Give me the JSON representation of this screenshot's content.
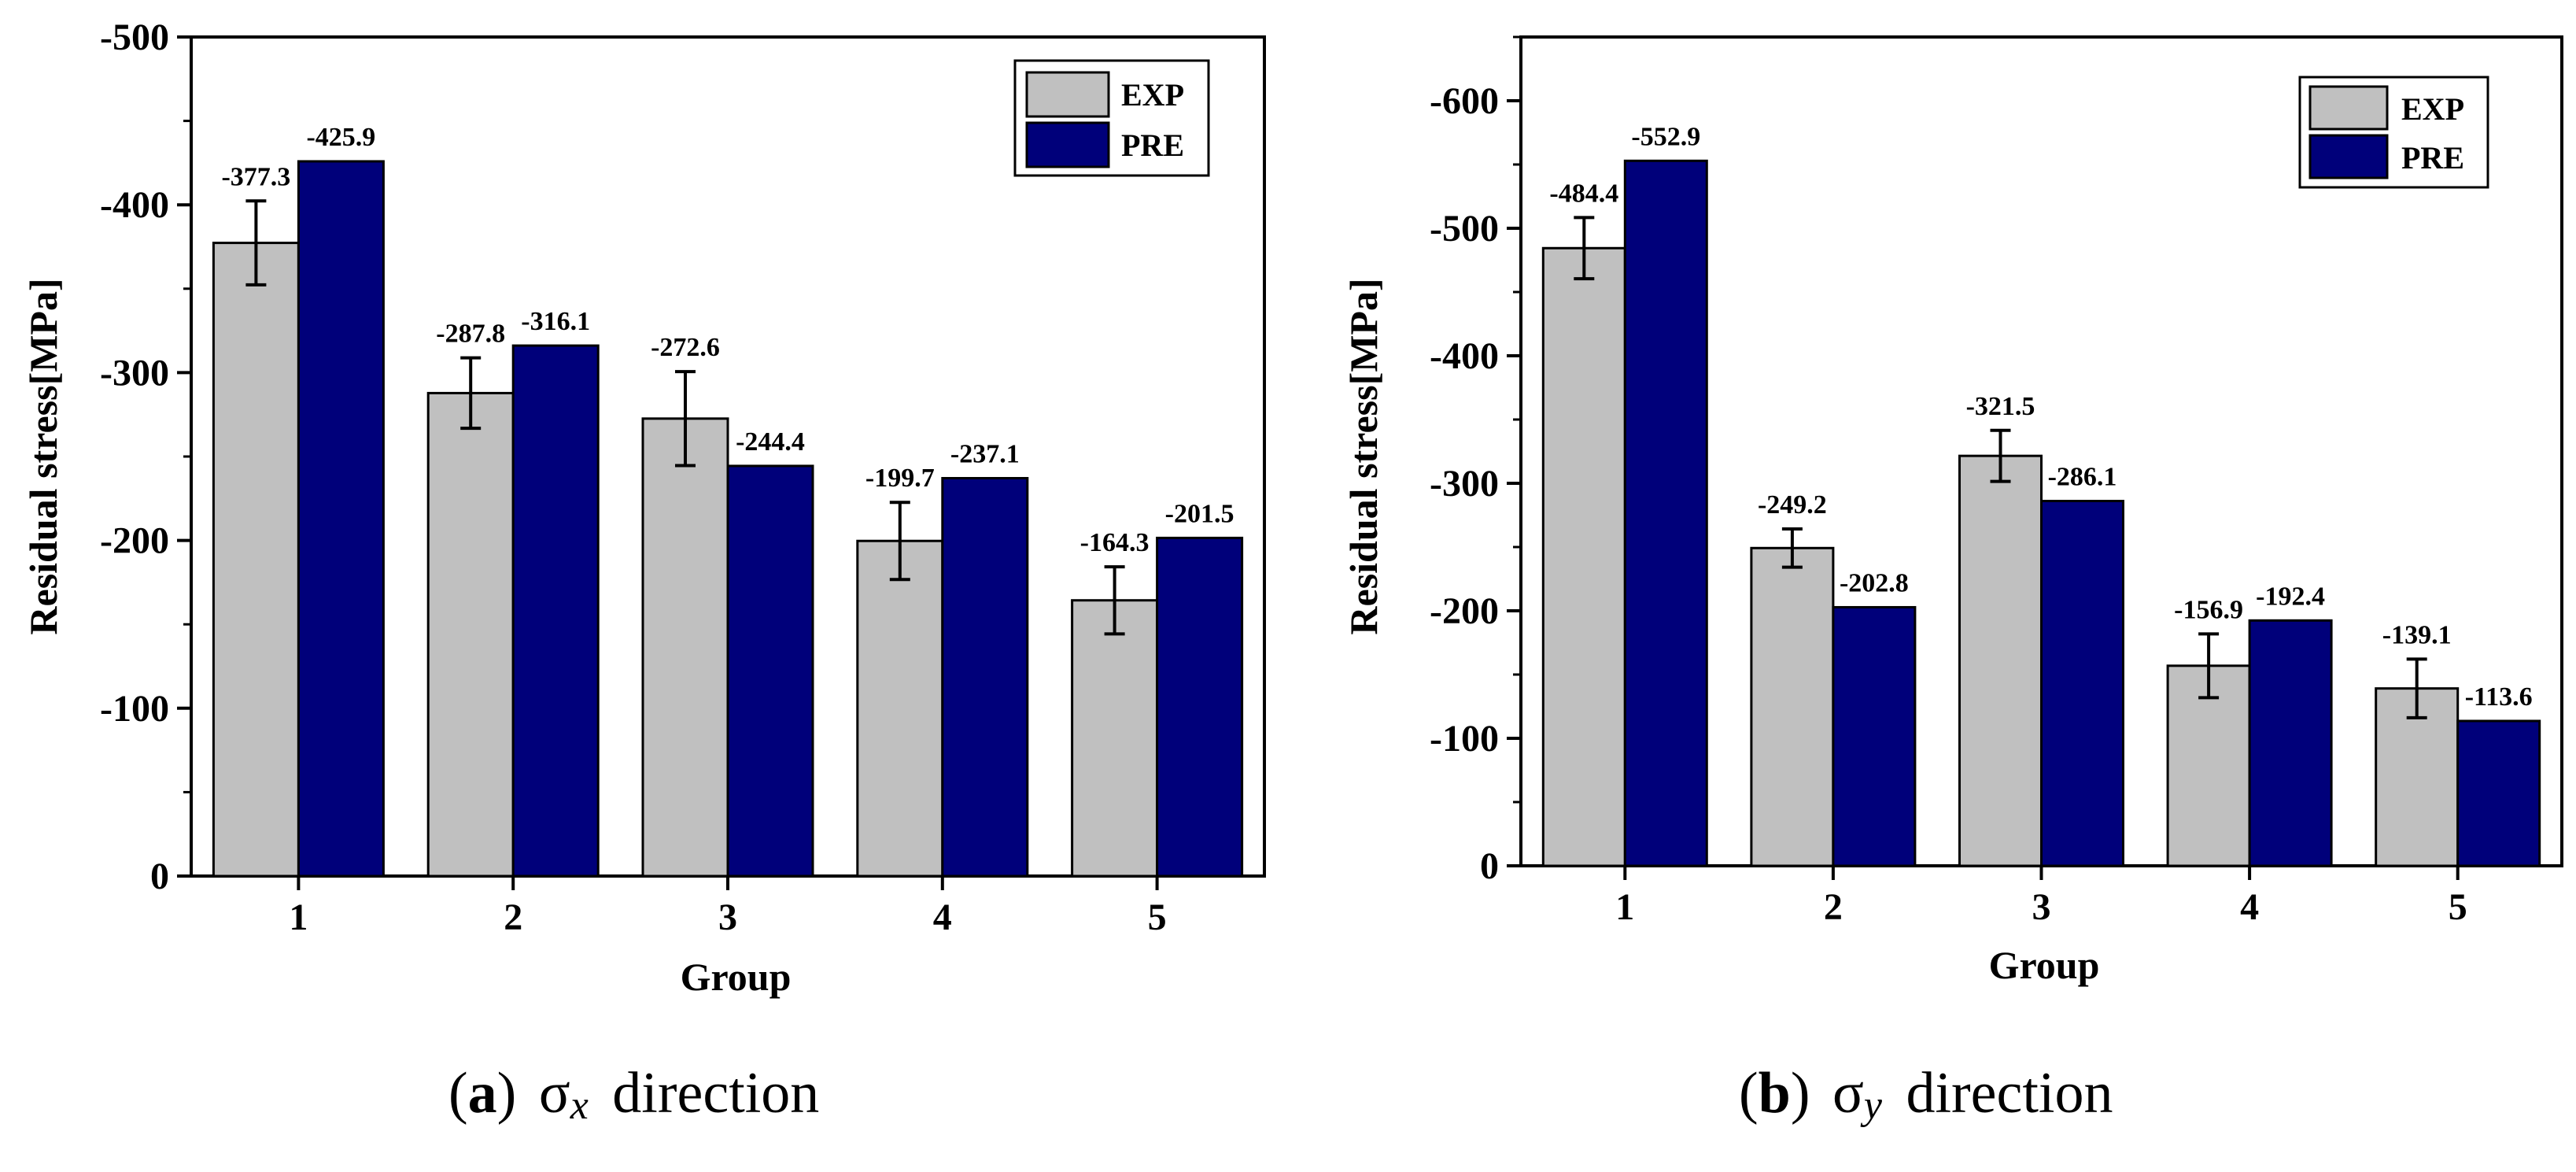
{
  "colors": {
    "exp": "#c0c0c0",
    "pre": "#00007a",
    "frame": "#000000"
  },
  "chart_data": [
    {
      "type": "bar",
      "title": "",
      "xlabel": "Group",
      "ylabel": "Residual stress[MPa]",
      "categories": [
        "1",
        "2",
        "3",
        "4",
        "5"
      ],
      "ylim": [
        0,
        -500
      ],
      "yticks": [
        0,
        -100,
        -200,
        -300,
        -400,
        -500
      ],
      "ytick_labels": [
        "0",
        "-100",
        "-200",
        "-300",
        "-400",
        "-500"
      ],
      "legend_position": "top-right",
      "series": [
        {
          "name": "EXP",
          "values": [
            -377.3,
            -287.8,
            -272.6,
            -199.7,
            -164.3
          ],
          "errors": [
            25,
            21,
            28,
            23,
            20
          ],
          "labels": [
            "-377.3",
            "-287.8",
            "-272.6",
            "-199.7",
            "-164.3"
          ]
        },
        {
          "name": "PRE",
          "values": [
            -425.9,
            -316.1,
            -244.4,
            -237.1,
            -201.5
          ],
          "labels": [
            "-425.9",
            "-316.1",
            "-244.4",
            "-237.1",
            "-201.5"
          ]
        }
      ]
    },
    {
      "type": "bar",
      "title": "",
      "xlabel": "Group",
      "ylabel": "Residual stress[MPa]",
      "categories": [
        "1",
        "2",
        "3",
        "4",
        "5"
      ],
      "ylim": [
        0,
        -650
      ],
      "yticks": [
        0,
        -100,
        -200,
        -300,
        -400,
        -500,
        -600
      ],
      "ytick_labels": [
        "0",
        "-100",
        "-200",
        "-300",
        "-400",
        "-500",
        "-600"
      ],
      "legend_position": "top-right",
      "series": [
        {
          "name": "EXP",
          "values": [
            -484.4,
            -249.2,
            -321.5,
            -156.9,
            -139.1
          ],
          "errors": [
            24,
            15,
            20,
            25,
            23
          ],
          "labels": [
            "-484.4",
            "-249.2",
            "-321.5",
            "-156.9",
            "-139.1"
          ]
        },
        {
          "name": "PRE",
          "values": [
            -552.9,
            -202.8,
            -286.1,
            -192.4,
            -113.6
          ],
          "labels": [
            "-552.9",
            "-202.8",
            "-286.1",
            "-192.4",
            "-113.6"
          ]
        }
      ]
    }
  ],
  "captions": [
    {
      "letter": "(a)",
      "symbol": "σ",
      "subscript": "x",
      "text": "direction"
    },
    {
      "letter": "(b)",
      "symbol": "σ",
      "subscript": "y",
      "text": "direction"
    }
  ]
}
